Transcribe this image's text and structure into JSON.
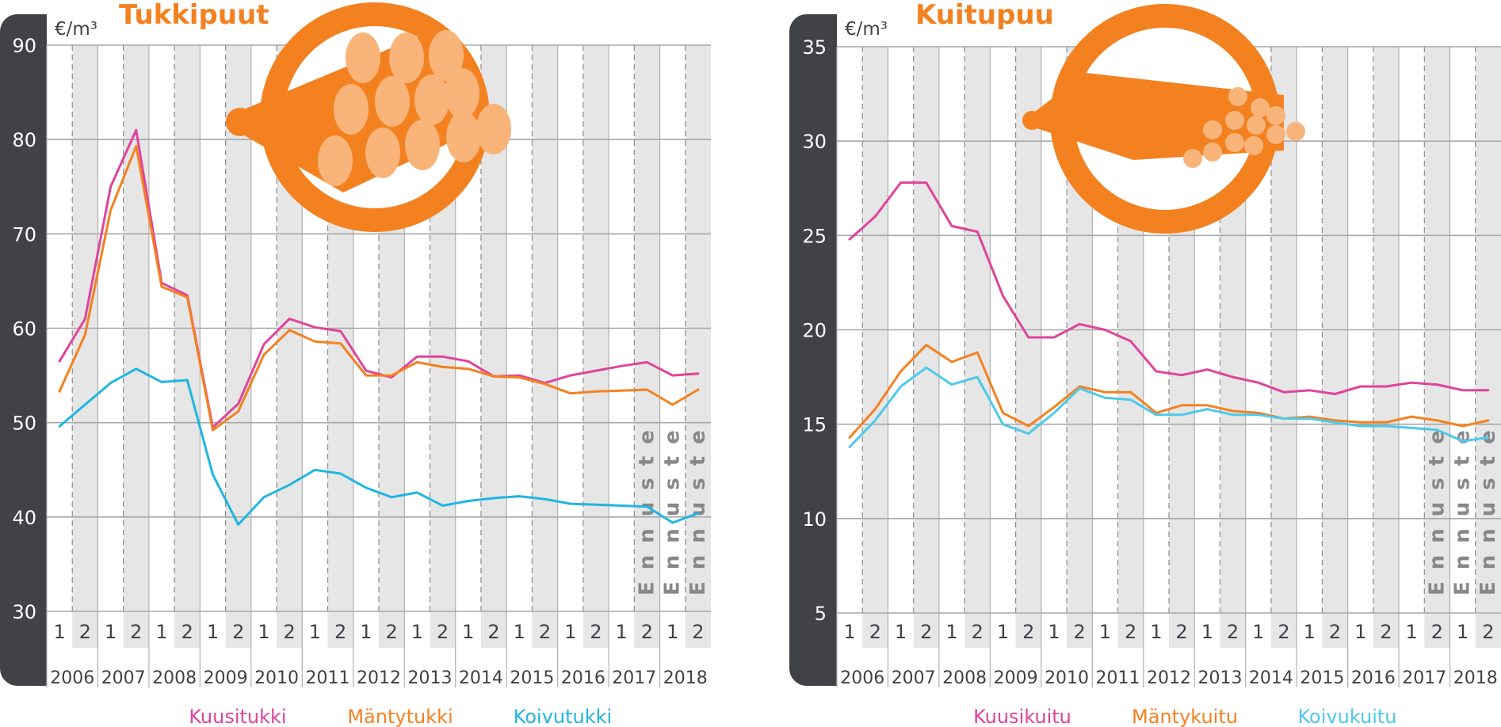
{
  "chart_data": [
    {
      "type": "line",
      "title": "Tukkipuut",
      "ylabel": "€/m³",
      "ylim": [
        30,
        90
      ],
      "yticks": [
        30,
        40,
        50,
        60,
        70,
        80,
        90
      ],
      "grid": true,
      "legend_position": "bottom",
      "half_year_labels": [
        "1",
        "2"
      ],
      "years": [
        "2006",
        "2007",
        "2008",
        "2009",
        "2010",
        "2011",
        "2012",
        "2013",
        "2014",
        "2015",
        "2016",
        "2017",
        "2018"
      ],
      "forecast_label": "Ennuste",
      "forecast_columns": 3,
      "icon": "log-bundle-icon",
      "series": [
        {
          "name": "Kuusitukki",
          "color": "#e0449a",
          "values": [
            56.5,
            61,
            75,
            81,
            64.8,
            63.5,
            49.5,
            52,
            58.3,
            61,
            60.1,
            59.7,
            55.5,
            54.8,
            57,
            57,
            56.5,
            54.9,
            55,
            54.2,
            55,
            55.5,
            56,
            56.4,
            55,
            55.2
          ]
        },
        {
          "name": "Mäntytukki",
          "color": "#f48120",
          "values": [
            53.3,
            59.3,
            72.5,
            79.3,
            64.4,
            63.3,
            49.2,
            51.2,
            57.2,
            59.8,
            58.6,
            58.4,
            55,
            55,
            56.4,
            55.9,
            55.7,
            54.9,
            54.8,
            54.1,
            53.1,
            53.3,
            53.4,
            53.5,
            51.9,
            53.5
          ]
        },
        {
          "name": "Koivutukki",
          "color": "#1fb6e2",
          "values": [
            49.6,
            51.9,
            54.2,
            55.7,
            54.3,
            54.5,
            44.5,
            39.2,
            42.1,
            43.4,
            45,
            44.6,
            43.1,
            42.1,
            42.6,
            41.2,
            41.7,
            42,
            42.2,
            41.9,
            41.4,
            41.3,
            41.2,
            41.1,
            39.4,
            40.4
          ]
        }
      ]
    },
    {
      "type": "line",
      "title": "Kuitupuu",
      "ylabel": "€/m³",
      "ylim": [
        5,
        35
      ],
      "yticks": [
        5,
        10,
        15,
        20,
        25,
        30,
        35
      ],
      "grid": true,
      "legend_position": "bottom",
      "half_year_labels": [
        "1",
        "2"
      ],
      "years": [
        "2006",
        "2007",
        "2008",
        "2009",
        "2010",
        "2011",
        "2012",
        "2013",
        "2014",
        "2015",
        "2016",
        "2017",
        "2018"
      ],
      "forecast_label": "Ennuste",
      "forecast_columns": 3,
      "icon": "log-bundle-icon",
      "series": [
        {
          "name": "Kuusikuitu",
          "color": "#e0449a",
          "values": [
            24.8,
            26,
            27.8,
            27.8,
            25.5,
            25.2,
            21.8,
            19.6,
            19.6,
            20.3,
            20,
            19.4,
            17.8,
            17.6,
            17.9,
            17.5,
            17.2,
            16.7,
            16.8,
            16.6,
            17,
            17,
            17.2,
            17.1,
            16.8,
            16.8
          ]
        },
        {
          "name": "Mäntykuitu",
          "color": "#f48120",
          "values": [
            14.3,
            15.8,
            17.8,
            19.2,
            18.3,
            18.8,
            15.6,
            14.9,
            15.9,
            17,
            16.7,
            16.7,
            15.6,
            16,
            16,
            15.7,
            15.6,
            15.3,
            15.4,
            15.2,
            15.1,
            15.1,
            15.4,
            15.2,
            14.9,
            15.2
          ]
        },
        {
          "name": "Koivukuitu",
          "color": "#4ec9ea",
          "values": [
            13.8,
            15.2,
            17,
            18,
            17.1,
            17.5,
            15,
            14.5,
            15.6,
            16.9,
            16.4,
            16.3,
            15.5,
            15.5,
            15.8,
            15.5,
            15.5,
            15.3,
            15.3,
            15.1,
            14.9,
            14.9,
            14.8,
            14.7,
            14.1,
            14.3
          ]
        }
      ]
    }
  ]
}
